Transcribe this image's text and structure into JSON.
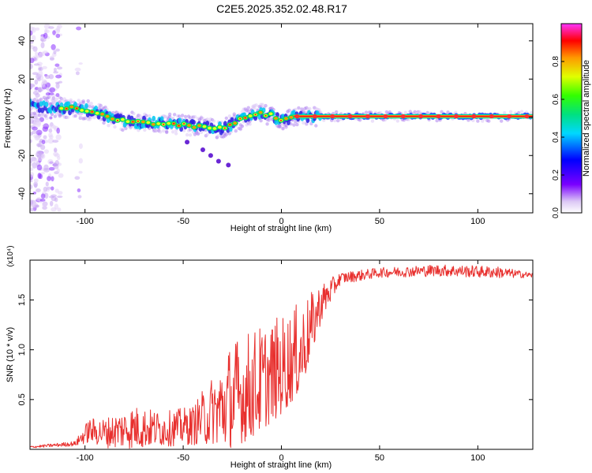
{
  "title": "C2E5.2025.352.02.48.R17",
  "chart_data": [
    {
      "type": "heatmap",
      "xlabel": "Height of straight line (km)",
      "ylabel": "Frequency (Hz)",
      "xlim": [
        -128,
        128
      ],
      "ylim": [
        -50,
        49
      ],
      "xticks": [
        -100,
        -50,
        0,
        50,
        100
      ],
      "yticks": [
        -40,
        -20,
        0,
        20,
        40
      ],
      "ridge": [
        {
          "x": -128,
          "y": 6
        },
        {
          "x": -110,
          "y": 5
        },
        {
          "x": -100,
          "y": 4
        },
        {
          "x": -95,
          "y": 3
        },
        {
          "x": -90,
          "y": 1
        },
        {
          "x": -85,
          "y": -1
        },
        {
          "x": -80,
          "y": -2
        },
        {
          "x": -70,
          "y": -3
        },
        {
          "x": -60,
          "y": -3
        },
        {
          "x": -50,
          "y": -4
        },
        {
          "x": -40,
          "y": -5
        },
        {
          "x": -33,
          "y": -6
        },
        {
          "x": -28,
          "y": -5
        },
        {
          "x": -24,
          "y": -3
        },
        {
          "x": -20,
          "y": -1
        },
        {
          "x": -15,
          "y": 1
        },
        {
          "x": -10,
          "y": 2
        },
        {
          "x": -5,
          "y": 1
        },
        {
          "x": 0,
          "y": -2
        },
        {
          "x": 5,
          "y": 0
        },
        {
          "x": 20,
          "y": 0.5
        },
        {
          "x": 128,
          "y": 0.5
        }
      ],
      "tail": [
        {
          "x": -48,
          "y": -13
        },
        {
          "x": -40,
          "y": -17
        },
        {
          "x": -36,
          "y": -20
        },
        {
          "x": -32,
          "y": -23
        },
        {
          "x": -27,
          "y": -25
        }
      ]
    },
    {
      "type": "colorbar",
      "label": "Normalized spectral amplitude",
      "range": [
        0,
        1
      ],
      "ticks": [
        "0.0",
        "0.2",
        "0.4",
        "0.6",
        "0.8"
      ],
      "tick_values": [
        0,
        0.2,
        0.4,
        0.6,
        0.8
      ]
    },
    {
      "type": "line",
      "xlabel": "Height of straight line (km)",
      "ylabel": "SNR (10 * v/v)",
      "multiplier": "(x10⁴)",
      "xlim": [
        -128,
        128
      ],
      "ylim": [
        0,
        1.9
      ],
      "xticks": [
        -100,
        -50,
        0,
        50,
        100
      ],
      "yticks": [
        "0.5",
        "1.0",
        "1.5"
      ],
      "ytick_values": [
        0.5,
        1.0,
        1.5
      ],
      "color": "#e8302e",
      "envelope": [
        {
          "x": -128,
          "base": 0.02,
          "spread": 0.02
        },
        {
          "x": -105,
          "base": 0.05,
          "spread": 0.05
        },
        {
          "x": -98,
          "base": 0.15,
          "spread": 0.25
        },
        {
          "x": -90,
          "base": 0.12,
          "spread": 0.3
        },
        {
          "x": -75,
          "base": 0.15,
          "spread": 0.45
        },
        {
          "x": -60,
          "base": 0.15,
          "spread": 0.35
        },
        {
          "x": -45,
          "base": 0.18,
          "spread": 0.4
        },
        {
          "x": -35,
          "base": 0.3,
          "spread": 0.7
        },
        {
          "x": -25,
          "base": 0.4,
          "spread": 1.1
        },
        {
          "x": -15,
          "base": 0.5,
          "spread": 1.1
        },
        {
          "x": 0,
          "base": 0.7,
          "spread": 1.0
        },
        {
          "x": 10,
          "base": 0.9,
          "spread": 0.9
        },
        {
          "x": 20,
          "base": 1.4,
          "spread": 0.4
        },
        {
          "x": 30,
          "base": 1.7,
          "spread": 0.12
        },
        {
          "x": 50,
          "base": 1.76,
          "spread": 0.1
        },
        {
          "x": 80,
          "base": 1.78,
          "spread": 0.12
        },
        {
          "x": 110,
          "base": 1.76,
          "spread": 0.12
        },
        {
          "x": 128,
          "base": 1.74,
          "spread": 0.05
        }
      ]
    }
  ]
}
